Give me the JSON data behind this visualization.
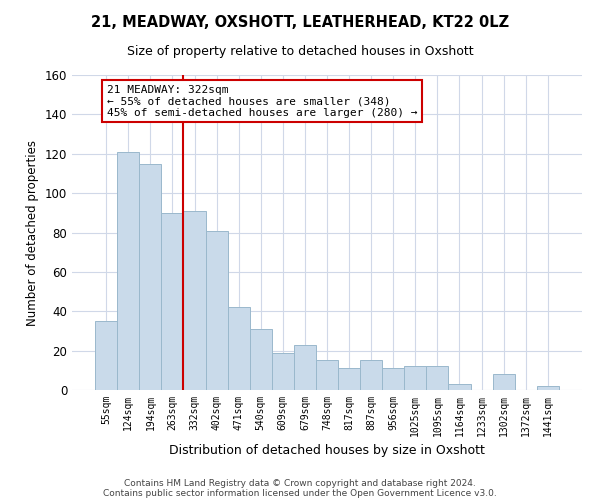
{
  "title": "21, MEADWAY, OXSHOTT, LEATHERHEAD, KT22 0LZ",
  "subtitle": "Size of property relative to detached houses in Oxshott",
  "xlabel": "Distribution of detached houses by size in Oxshott",
  "ylabel": "Number of detached properties",
  "bar_color": "#c9daea",
  "bar_edge_color": "#9ab8cc",
  "categories": [
    "55sqm",
    "124sqm",
    "194sqm",
    "263sqm",
    "332sqm",
    "402sqm",
    "471sqm",
    "540sqm",
    "609sqm",
    "679sqm",
    "748sqm",
    "817sqm",
    "887sqm",
    "956sqm",
    "1025sqm",
    "1095sqm",
    "1164sqm",
    "1233sqm",
    "1302sqm",
    "1372sqm",
    "1441sqm"
  ],
  "values": [
    35,
    121,
    115,
    90,
    91,
    81,
    42,
    31,
    19,
    23,
    15,
    11,
    15,
    11,
    12,
    12,
    3,
    0,
    8,
    0,
    2
  ],
  "vline_x": 3.5,
  "vline_color": "#cc0000",
  "annotation_title": "21 MEADWAY: 322sqm",
  "annotation_line1": "← 55% of detached houses are smaller (348)",
  "annotation_line2": "45% of semi-detached houses are larger (280) →",
  "annotation_box_color": "#ffffff",
  "annotation_box_edgecolor": "#cc0000",
  "ylim": [
    0,
    160
  ],
  "yticks": [
    0,
    20,
    40,
    60,
    80,
    100,
    120,
    140,
    160
  ],
  "footer1": "Contains HM Land Registry data © Crown copyright and database right 2024.",
  "footer2": "Contains public sector information licensed under the Open Government Licence v3.0.",
  "bg_color": "#ffffff",
  "grid_color": "#d0d8e8"
}
